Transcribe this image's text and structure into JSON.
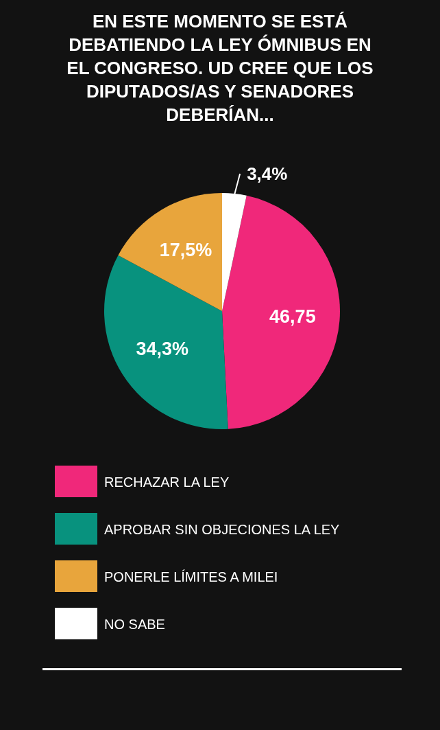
{
  "chart_data": {
    "type": "pie",
    "title": "EN ESTE MOMENTO SE ESTÁ DEBATIENDO LA LEY ÓMNIBUS EN EL CONGRESO. UD CREE QUE LOS DIPUTADOS/AS Y SENADORES DEBERÍAN...",
    "categories": [
      "RECHAZAR LA LEY",
      "APROBAR SIN OBJECIONES LA LEY",
      "PONERLE LÍMITES A MILEI",
      "NO SABE"
    ],
    "values": [
      46.75,
      34.3,
      17.5,
      3.4
    ],
    "colors": [
      "#f0287a",
      "#08927e",
      "#e8a53c",
      "#ffffff"
    ],
    "value_labels": [
      "46,75",
      "34,3%",
      "17,5%",
      "3,4%"
    ],
    "legend": "bottom"
  }
}
